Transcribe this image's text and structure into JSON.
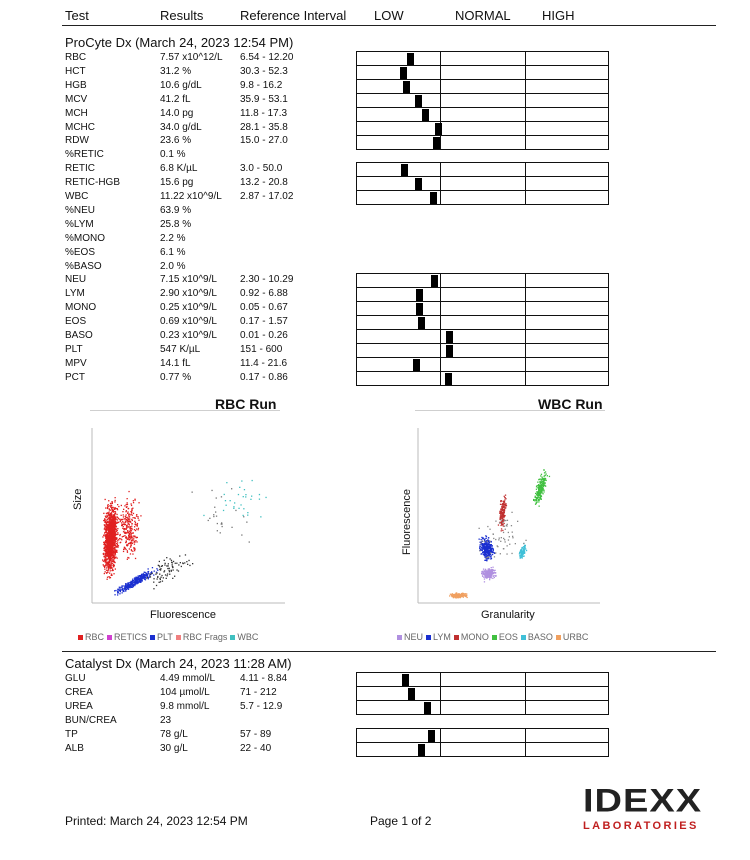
{
  "header": {
    "test": "Test",
    "results": "Results",
    "reference": "Reference Interval",
    "low": "LOW",
    "normal": "NORMAL",
    "high": "HIGH"
  },
  "procyte": {
    "title": "ProCyte Dx (March 24, 2023 12:54 PM)",
    "rows": [
      {
        "test": "RBC",
        "result": "7.57 x10^12/L",
        "ref": "6.54 - 12.20",
        "pos": 0.59
      },
      {
        "test": "HCT",
        "result": "31.2 %",
        "ref": "30.3 - 52.3",
        "pos": 0.51
      },
      {
        "test": "HGB",
        "result": "10.6 g/dL",
        "ref": "9.8 - 16.2",
        "pos": 0.54
      },
      {
        "test": "MCV",
        "result": "41.2 fL",
        "ref": "35.9 - 53.1",
        "pos": 0.69
      },
      {
        "test": "MCH",
        "result": "14.0 pg",
        "ref": "11.8 - 17.3",
        "pos": 0.77
      },
      {
        "test": "MCHC",
        "result": "34.0 g/dL",
        "ref": "28.1 - 35.8",
        "pos": 0.93
      },
      {
        "test": "RDW",
        "result": "23.6 %",
        "ref": "15.0 - 27.0",
        "pos": 0.9
      },
      {
        "test": "%RETIC",
        "result": "0.1 %",
        "ref": "",
        "pos": null
      },
      {
        "test": "RETIC",
        "result": "6.8 K/µL",
        "ref": "3.0 - 50.0",
        "pos": 0.52
      },
      {
        "test": "RETIC-HGB",
        "result": "15.6 pg",
        "ref": "13.2 - 20.8",
        "pos": 0.69
      },
      {
        "test": "WBC",
        "result": "11.22 x10^9/L",
        "ref": "2.87 - 17.02",
        "pos": 0.86
      },
      {
        "test": "%NEU",
        "result": "63.9 %",
        "ref": "",
        "pos": null
      },
      {
        "test": "%LYM",
        "result": "25.8 %",
        "ref": "",
        "pos": null
      },
      {
        "test": "%MONO",
        "result": "2.2 %",
        "ref": "",
        "pos": null
      },
      {
        "test": "%EOS",
        "result": "6.1 %",
        "ref": "",
        "pos": null
      },
      {
        "test": "%BASO",
        "result": "2.0 %",
        "ref": "",
        "pos": null
      },
      {
        "test": "NEU",
        "result": "7.15 x10^9/L",
        "ref": "2.30 - 10.29",
        "pos": 0.88
      },
      {
        "test": "LYM",
        "result": "2.90 x10^9/L",
        "ref": "0.92 - 6.88",
        "pos": 0.7
      },
      {
        "test": "MONO",
        "result": "0.25 x10^9/L",
        "ref": "0.05 - 0.67",
        "pos": 0.7
      },
      {
        "test": "EOS",
        "result": "0.69 x10^9/L",
        "ref": "0.17 - 1.57",
        "pos": 0.72
      },
      {
        "test": "BASO",
        "result": "0.23 x10^9/L",
        "ref": "0.01 - 0.26",
        "pos": 1.06
      },
      {
        "test": "PLT",
        "result": "547 K/µL",
        "ref": "151 - 600",
        "pos": 1.06
      },
      {
        "test": "MPV",
        "result": "14.1 fL",
        "ref": "11.4 - 21.6",
        "pos": 0.66
      },
      {
        "test": "PCT",
        "result": "0.77 %",
        "ref": "0.17 - 0.86",
        "pos": 1.04
      }
    ]
  },
  "rbc_plot": {
    "title": "RBC Run",
    "xlabel": "Fluorescence",
    "ylabel": "Size",
    "legend": [
      {
        "label": "RBC",
        "color": "#e02020"
      },
      {
        "label": "RETICS",
        "color": "#d040d0"
      },
      {
        "label": "PLT",
        "color": "#1a2fd0"
      },
      {
        "label": "RBC Frags",
        "color": "#f08080"
      },
      {
        "label": "WBC",
        "color": "#40c0c0"
      }
    ]
  },
  "wbc_plot": {
    "title": "WBC Run",
    "xlabel": "Granularity",
    "ylabel": "Fluorescence",
    "legend": [
      {
        "label": "NEU",
        "color": "#b090e0"
      },
      {
        "label": "LYM",
        "color": "#1a2fd0"
      },
      {
        "label": "MONO",
        "color": "#c03030"
      },
      {
        "label": "EOS",
        "color": "#40c040"
      },
      {
        "label": "BASO",
        "color": "#40c0d8"
      },
      {
        "label": "URBC",
        "color": "#f0a060"
      }
    ]
  },
  "catalyst": {
    "title": "Catalyst Dx (March 24, 2023 11:28 AM)",
    "rows": [
      {
        "test": "GLU",
        "result": "4.49 mmol/L",
        "ref": "4.11 - 8.84",
        "pos": 0.53
      },
      {
        "test": "CREA",
        "result": "104 µmol/L",
        "ref": "71 - 212",
        "pos": 0.6
      },
      {
        "test": "UREA",
        "result": "9.8 mmol/L",
        "ref": "5.7 - 12.9",
        "pos": 0.79
      },
      {
        "test": "BUN/CREA",
        "result": "23",
        "ref": "",
        "pos": null
      },
      {
        "test": "TP",
        "result": "78 g/L",
        "ref": "57 - 89",
        "pos": 0.84
      },
      {
        "test": "ALB",
        "result": "30 g/L",
        "ref": "22 - 40",
        "pos": 0.72
      }
    ]
  },
  "footer": {
    "printed": "Printed: March 24, 2023 12:54 PM",
    "page": "Page 1 of 2",
    "logo_main": "IDEXX",
    "logo_sub": "LABORATORIES"
  }
}
